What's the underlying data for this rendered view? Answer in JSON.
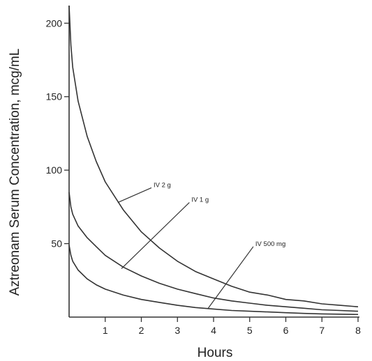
{
  "chart_data": {
    "type": "line",
    "xlabel": "Hours",
    "ylabel": "Aztreonam Serum Concentration, mcg/mL",
    "xlim": [
      0,
      8
    ],
    "ylim": [
      0,
      212
    ],
    "xticks": [
      "1",
      "2",
      "3",
      "4",
      "5",
      "6",
      "7",
      "8"
    ],
    "yticks": [
      "50",
      "100",
      "150",
      "200"
    ],
    "grid": false,
    "legend": "none",
    "line_color": "#333333",
    "series": [
      {
        "name": "IV 2 g",
        "x": [
          0,
          0.05,
          0.1,
          0.25,
          0.5,
          0.75,
          1,
          1.5,
          2,
          2.5,
          3,
          3.5,
          4,
          4.5,
          5,
          5.5,
          6,
          6.5,
          7,
          7.5,
          8
        ],
        "y": [
          212,
          185,
          170,
          147,
          123,
          106,
          92,
          73,
          58,
          47,
          38,
          31,
          26,
          21,
          17,
          15,
          12,
          11,
          9,
          8,
          7
        ]
      },
      {
        "name": "IV 1 g",
        "x": [
          0,
          0.05,
          0.1,
          0.25,
          0.5,
          0.75,
          1,
          1.5,
          2,
          2.5,
          3,
          3.5,
          4,
          4.5,
          5,
          5.5,
          6,
          6.5,
          7,
          7.5,
          8
        ],
        "y": [
          85,
          75,
          70,
          62,
          54,
          48,
          42,
          34,
          28,
          23,
          19,
          16,
          13,
          11,
          9.5,
          8,
          7,
          6,
          5,
          4.5,
          4
        ]
      },
      {
        "name": "IV 500 mg",
        "x": [
          0,
          0.05,
          0.1,
          0.25,
          0.5,
          0.75,
          1,
          1.5,
          2,
          2.5,
          3,
          3.5,
          4,
          4.5,
          5,
          5.5,
          6,
          6.5,
          7,
          7.5,
          8
        ],
        "y": [
          49,
          42,
          38,
          32,
          26,
          22,
          19,
          15,
          12,
          10,
          8,
          6.5,
          5.5,
          4.5,
          4,
          3.5,
          3,
          2.5,
          2.2,
          2,
          1.8
        ]
      }
    ],
    "annotations": [
      {
        "text": "IV 2 g",
        "series": "IV 2 g",
        "pointer": [
          1.35,
          78
        ],
        "label_at": [
          2.28,
          88
        ]
      },
      {
        "text": "IV 1 g",
        "series": "IV 1 g",
        "pointer": [
          1.45,
          33
        ],
        "label_at": [
          3.33,
          78
        ]
      },
      {
        "text": "IV  500 mg",
        "series": "IV 500 mg",
        "pointer": [
          3.85,
          6
        ],
        "label_at": [
          5.1,
          48
        ]
      }
    ]
  }
}
